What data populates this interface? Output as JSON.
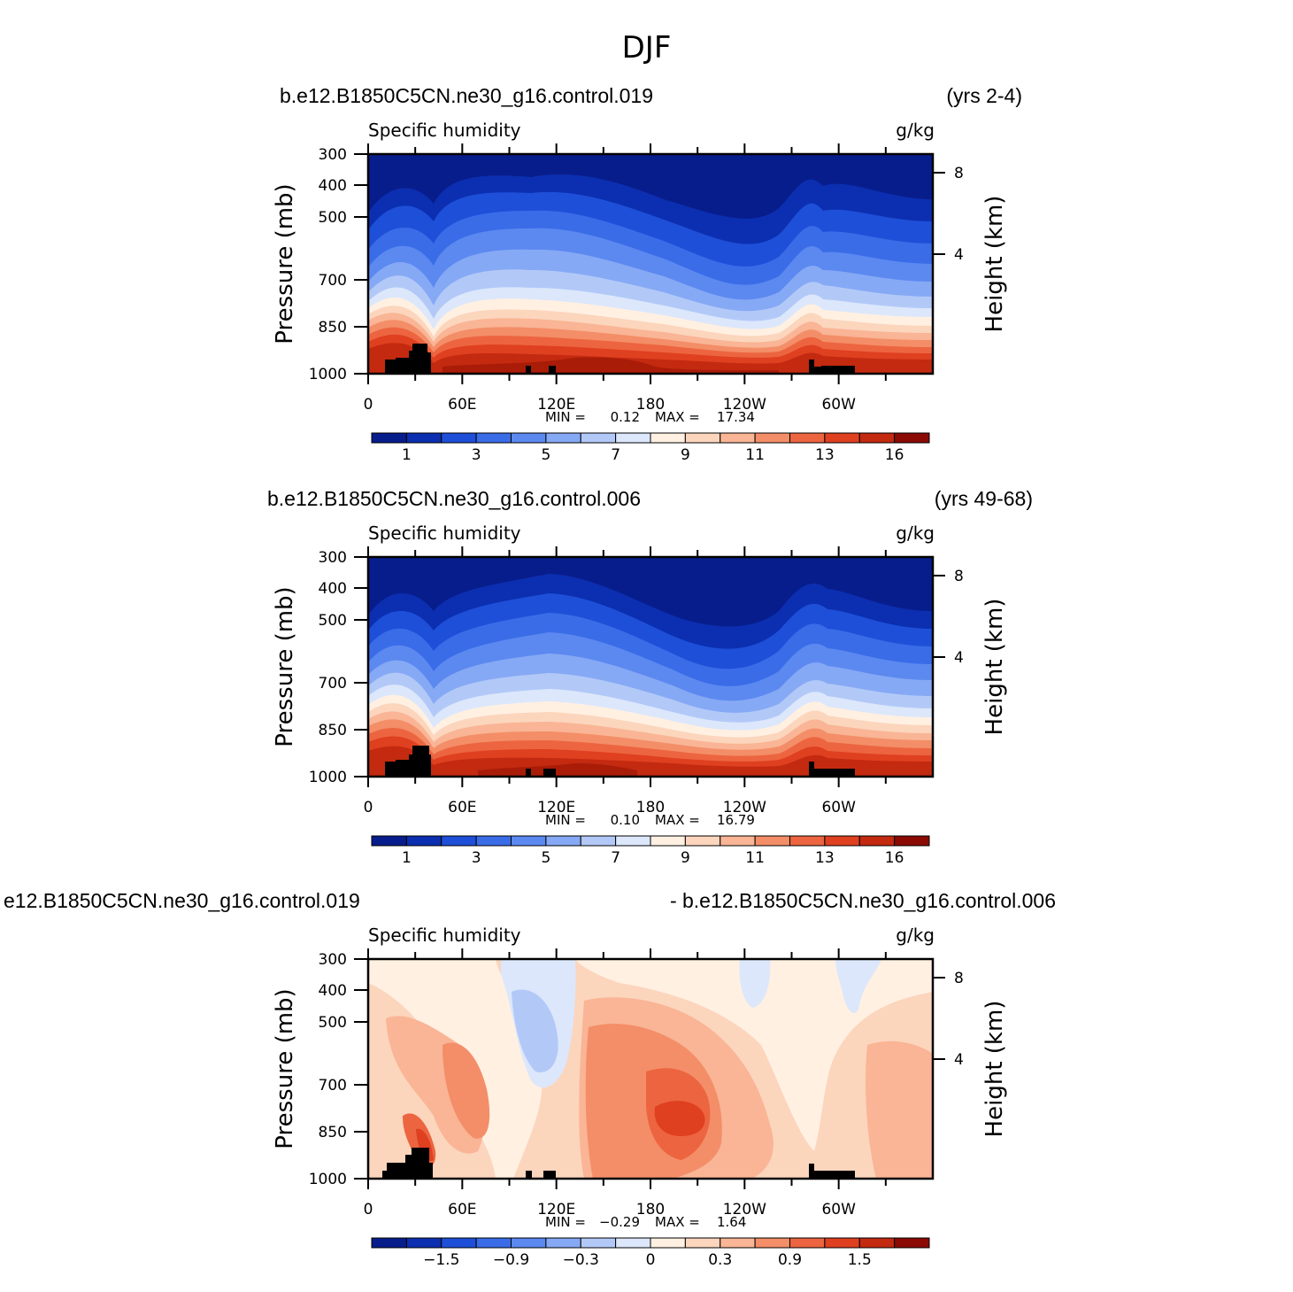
{
  "page": {
    "title": "DJF"
  },
  "chart_data": [
    {
      "type": "heatmap",
      "case_label": "b.e12.B1850C5CN.ne30_g16.control.019",
      "years_label": "(yrs 2-4)",
      "variable": "Specific humidity",
      "units": "g/kg",
      "ylabel": "Pressure (mb)",
      "ylabel_right": "Height (km)",
      "xticks": [
        "0",
        "60E",
        "120E",
        "180",
        "120W",
        "60W"
      ],
      "yticks": [
        "300",
        "400",
        "500",
        "700",
        "850",
        "1000"
      ],
      "yticks_right": [
        "8",
        "4"
      ],
      "ylim": [
        1000,
        300
      ],
      "xlim": [
        0,
        360
      ],
      "min_label": "MIN =",
      "min_value": "0.12",
      "max_label": "MAX =",
      "max_value": "17.34",
      "colorbar": {
        "labels": [
          "1",
          "3",
          "5",
          "7",
          "9",
          "11",
          "13",
          "16"
        ],
        "colors": [
          "#081d8c",
          "#0b2fb0",
          "#1e4fd8",
          "#3a6ce8",
          "#5c89f0",
          "#86a9f5",
          "#b2c9f8",
          "#dce7fb",
          "#fff0e2",
          "#fcd5bd",
          "#f9b595",
          "#f38e68",
          "#ec6540",
          "#df4020",
          "#c32a10",
          "#8c0a04"
        ]
      }
    },
    {
      "type": "heatmap",
      "case_label": "b.e12.B1850C5CN.ne30_g16.control.006",
      "years_label": "(yrs 49-68)",
      "variable": "Specific humidity",
      "units": "g/kg",
      "ylabel": "Pressure (mb)",
      "ylabel_right": "Height (km)",
      "xticks": [
        "0",
        "60E",
        "120E",
        "180",
        "120W",
        "60W"
      ],
      "yticks": [
        "300",
        "400",
        "500",
        "700",
        "850",
        "1000"
      ],
      "yticks_right": [
        "8",
        "4"
      ],
      "ylim": [
        1000,
        300
      ],
      "xlim": [
        0,
        360
      ],
      "min_label": "MIN =",
      "min_value": "0.10",
      "max_label": "MAX =",
      "max_value": "16.79",
      "colorbar": {
        "labels": [
          "1",
          "3",
          "5",
          "7",
          "9",
          "11",
          "13",
          "16"
        ],
        "colors": [
          "#081d8c",
          "#0b2fb0",
          "#1e4fd8",
          "#3a6ce8",
          "#5c89f0",
          "#86a9f5",
          "#b2c9f8",
          "#dce7fb",
          "#fff0e2",
          "#fcd5bd",
          "#f9b595",
          "#f38e68",
          "#ec6540",
          "#df4020",
          "#c32a10",
          "#8c0a04"
        ]
      }
    },
    {
      "type": "heatmap",
      "case_label": "e12.B1850C5CN.ne30_g16.control.019",
      "years_label": "- b.e12.B1850C5CN.ne30_g16.control.006",
      "variable": "Specific humidity",
      "units": "g/kg",
      "ylabel": "Pressure (mb)",
      "ylabel_right": "Height (km)",
      "xticks": [
        "0",
        "60E",
        "120E",
        "180",
        "120W",
        "60W"
      ],
      "yticks": [
        "300",
        "400",
        "500",
        "700",
        "850",
        "1000"
      ],
      "yticks_right": [
        "8",
        "4"
      ],
      "ylim": [
        1000,
        300
      ],
      "xlim": [
        0,
        360
      ],
      "min_label": "MIN =",
      "min_value": "−0.29",
      "max_label": "MAX =",
      "max_value": "1.64",
      "colorbar": {
        "labels": [
          "−1.5",
          "−0.9",
          "−0.3",
          "0",
          "0.3",
          "0.9",
          "1.5"
        ],
        "colors": [
          "#081d8c",
          "#0b2fb0",
          "#1e4fd8",
          "#3a6ce8",
          "#5c89f0",
          "#86a9f5",
          "#b2c9f8",
          "#dce7fb",
          "#fff0e2",
          "#fcd5bd",
          "#f9b595",
          "#f38e68",
          "#ec6540",
          "#df4020",
          "#c32a10",
          "#8c0a04"
        ]
      }
    }
  ]
}
